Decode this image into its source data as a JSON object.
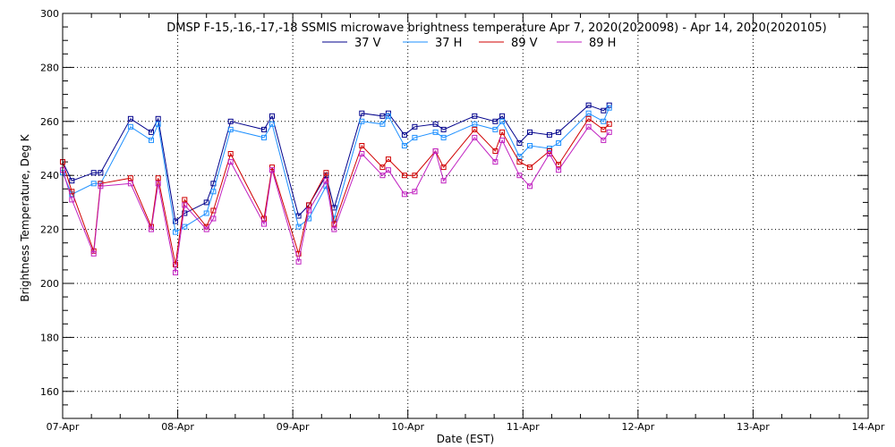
{
  "chart_data": {
    "type": "line",
    "title": "DMSP F-15,-16,-17,-18 SSMIS microwave brightness temperature Apr  7, 2020(2020098) - Apr 14, 2020(2020105)",
    "xlabel": "Date (EST)",
    "ylabel": "Brightness Temperature, Deg K",
    "ylim": [
      150,
      300
    ],
    "yticks": [
      160,
      180,
      200,
      220,
      240,
      260,
      280,
      300
    ],
    "xlim": [
      0,
      7
    ],
    "xticks": [
      {
        "x": 0,
        "label": "07-Apr"
      },
      {
        "x": 1,
        "label": "08-Apr"
      },
      {
        "x": 2,
        "label": "09-Apr"
      },
      {
        "x": 3,
        "label": "10-Apr"
      },
      {
        "x": 4,
        "label": "11-Apr"
      },
      {
        "x": 5,
        "label": "12-Apr"
      },
      {
        "x": 6,
        "label": "13-Apr"
      },
      {
        "x": 7,
        "label": "14-Apr"
      }
    ],
    "grid": true,
    "legend_position": "top-center",
    "series": [
      {
        "name": "37 V",
        "color": "#00008B",
        "x": [
          0.0,
          0.08,
          0.27,
          0.33,
          0.59,
          0.77,
          0.83,
          0.98,
          1.06,
          1.25,
          1.31,
          1.46,
          1.75,
          1.82,
          2.05,
          2.14,
          2.29,
          2.36,
          2.6,
          2.78,
          2.83,
          2.97,
          3.06,
          3.24,
          3.31,
          3.58,
          3.76,
          3.82,
          3.97,
          4.06,
          4.23,
          4.31,
          4.57,
          4.7,
          4.75
        ],
        "values": [
          245,
          238,
          241,
          241,
          261,
          256,
          261,
          223,
          226,
          230,
          237,
          260,
          257,
          262,
          225,
          229,
          240,
          228,
          263,
          262,
          263,
          255,
          258,
          259,
          257,
          262,
          260,
          262,
          252,
          256,
          255,
          256,
          266,
          264,
          266
        ]
      },
      {
        "name": "37 H",
        "color": "#1E90FF",
        "x": [
          0.0,
          0.08,
          0.27,
          0.33,
          0.59,
          0.77,
          0.83,
          0.98,
          1.06,
          1.25,
          1.31,
          1.46,
          1.75,
          1.82,
          2.05,
          2.14,
          2.29,
          2.36,
          2.6,
          2.78,
          2.83,
          2.97,
          3.06,
          3.24,
          3.31,
          3.58,
          3.76,
          3.82,
          3.97,
          4.06,
          4.23,
          4.31,
          4.57,
          4.7,
          4.75
        ],
        "values": [
          241,
          233,
          237,
          237,
          258,
          253,
          259,
          219,
          221,
          226,
          234,
          257,
          254,
          259,
          221,
          224,
          236,
          224,
          260,
          259,
          262,
          251,
          254,
          256,
          254,
          259,
          257,
          260,
          247,
          251,
          250,
          252,
          263,
          260,
          265
        ]
      },
      {
        "name": "89 V",
        "color": "#D00000",
        "x": [
          0.0,
          0.08,
          0.27,
          0.33,
          0.59,
          0.77,
          0.83,
          0.98,
          1.06,
          1.25,
          1.31,
          1.46,
          1.75,
          1.82,
          2.05,
          2.14,
          2.29,
          2.36,
          2.6,
          2.78,
          2.83,
          2.97,
          3.06,
          3.24,
          3.31,
          3.58,
          3.76,
          3.82,
          3.97,
          4.06,
          4.23,
          4.31,
          4.57,
          4.7,
          4.75
        ],
        "values": [
          245,
          234,
          212,
          237,
          239,
          221,
          239,
          207,
          231,
          221,
          227,
          248,
          224,
          243,
          211,
          229,
          241,
          222,
          251,
          243,
          246,
          240,
          240,
          249,
          243,
          257,
          249,
          256,
          245,
          243,
          249,
          244,
          261,
          257,
          259
        ]
      },
      {
        "name": "89 H",
        "color": "#C020C0",
        "x": [
          0.0,
          0.08,
          0.27,
          0.33,
          0.59,
          0.77,
          0.83,
          0.98,
          1.06,
          1.25,
          1.31,
          1.46,
          1.75,
          1.82,
          2.05,
          2.14,
          2.29,
          2.36,
          2.6,
          2.78,
          2.83,
          2.97,
          3.06,
          3.24,
          3.31,
          3.58,
          3.76,
          3.82,
          3.97,
          4.06,
          4.23,
          4.31,
          4.57,
          4.7,
          4.75
        ],
        "values": [
          242,
          231,
          211,
          236,
          237,
          220,
          237,
          204,
          229,
          220,
          224,
          245,
          222,
          242,
          208,
          227,
          238,
          220,
          248,
          240,
          242,
          233,
          234,
          249,
          238,
          254,
          245,
          253,
          240,
          236,
          248,
          242,
          258,
          253,
          256
        ]
      }
    ]
  }
}
